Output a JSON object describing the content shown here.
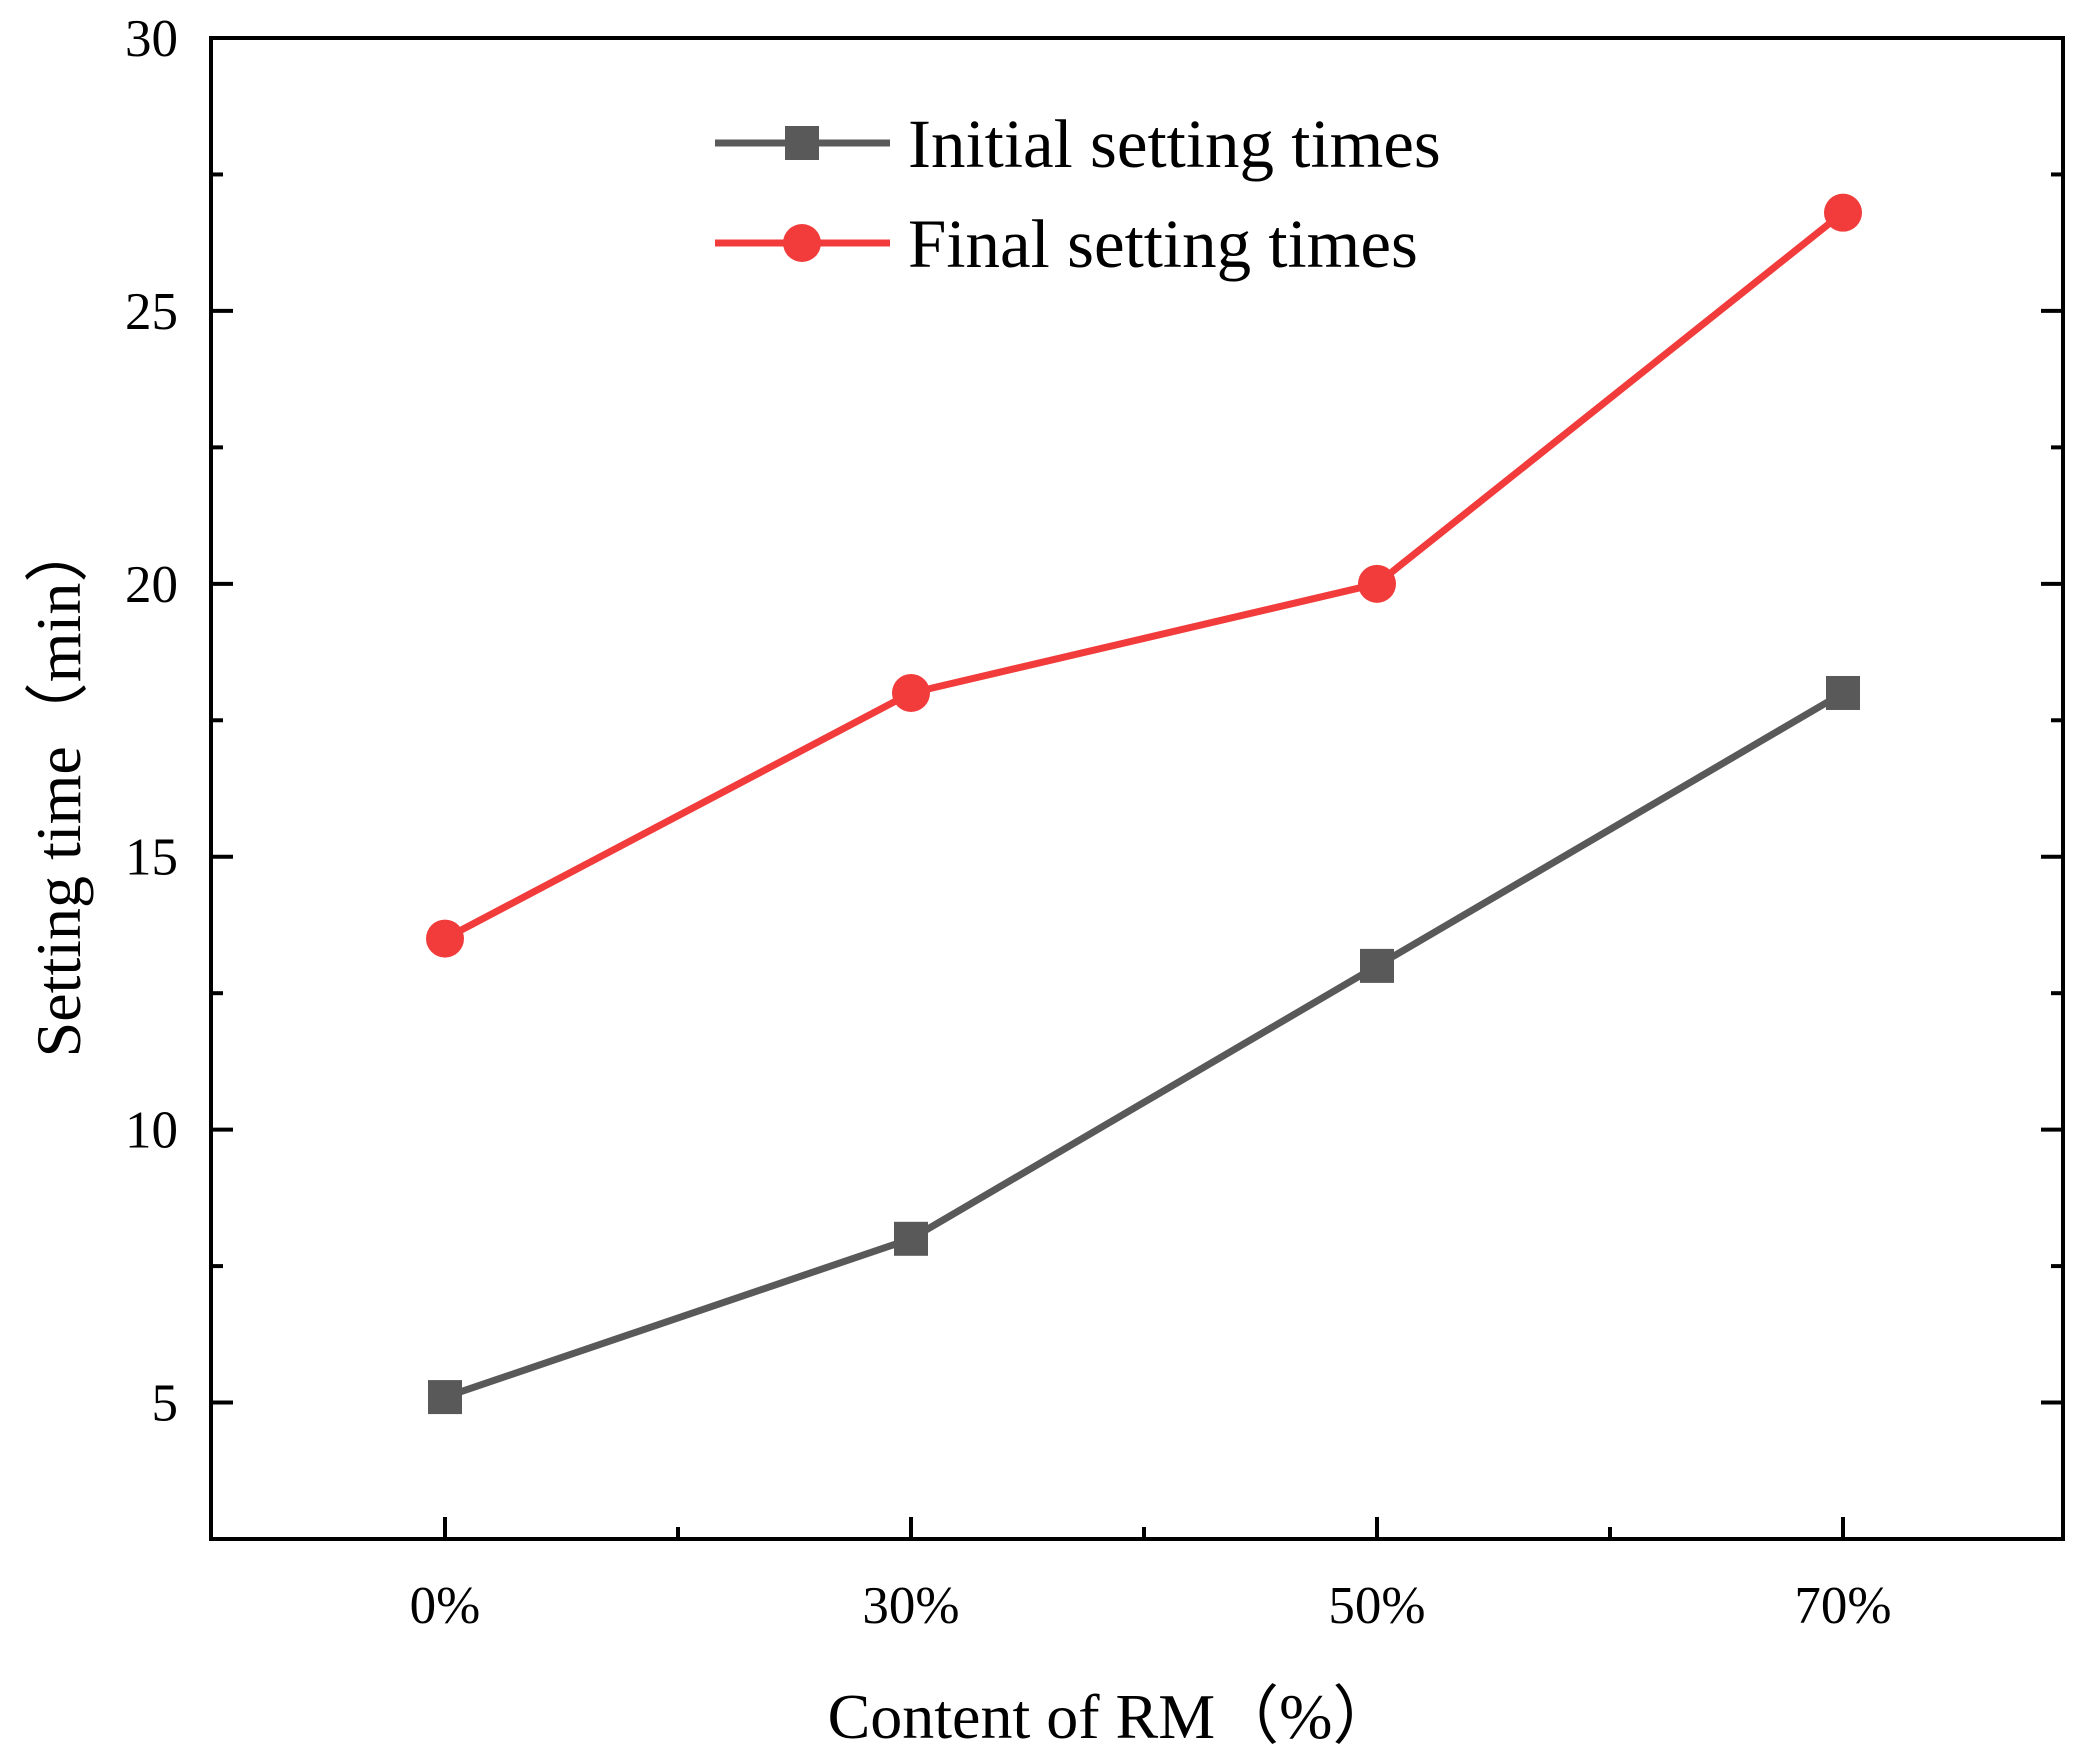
{
  "chart_data": {
    "type": "line",
    "categories": [
      "0%",
      "30%",
      "50%",
      "70%"
    ],
    "xlabel": "Content of RM（%）",
    "ylabel": "Setting time（min）",
    "ylim": [
      2.5,
      30
    ],
    "yticks": [
      5,
      10,
      15,
      20,
      25,
      30
    ],
    "grid": false,
    "legend_position": "top-center",
    "series": [
      {
        "name": "Initial setting times",
        "values": [
          5.1,
          8.0,
          13.0,
          18.0
        ],
        "color": "#595959",
        "marker": "square"
      },
      {
        "name": "Final setting times",
        "values": [
          13.5,
          18.0,
          20.0,
          26.8
        ],
        "color": "#f23c3c",
        "marker": "circle"
      }
    ]
  }
}
